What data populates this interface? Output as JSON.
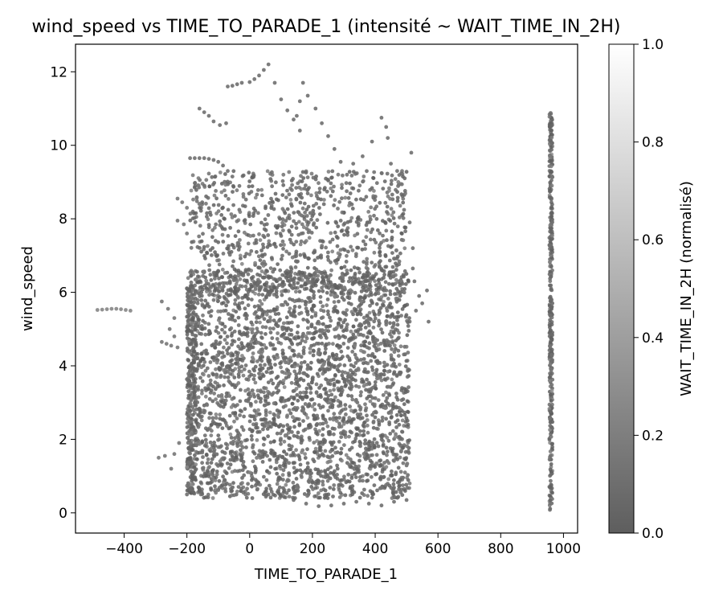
{
  "chart_data": {
    "type": "scatter",
    "title": "wind_speed vs TIME_TO_PARADE_1 (intensité ~ WAIT_TIME_IN_2H)",
    "xlabel": "TIME_TO_PARADE_1",
    "ylabel": "wind_speed",
    "xlim": [
      -555,
      1045
    ],
    "ylim": [
      -0.55,
      12.75
    ],
    "xticks": [
      -400,
      -200,
      0,
      200,
      400,
      600,
      800,
      1000
    ],
    "yticks": [
      0,
      2,
      4,
      6,
      8,
      10,
      12
    ],
    "xtick_labels": [
      "−400",
      "−200",
      "0",
      "200",
      "400",
      "600",
      "800",
      "1000"
    ],
    "ytick_labels": [
      "0",
      "2",
      "4",
      "6",
      "8",
      "10",
      "12"
    ],
    "grid": false,
    "colorbar": {
      "label": "WAIT_TIME_IN_2H (normalisé)",
      "range": [
        0.0,
        1.0
      ],
      "ticks": [
        0.0,
        0.2,
        0.4,
        0.6,
        0.8,
        1.0
      ],
      "tick_labels": [
        "0.0",
        "0.2",
        "0.4",
        "0.6",
        "0.8",
        "1.0"
      ],
      "colormap": "gray",
      "color_low": "#5e5e5e",
      "color_high": "#ffffff"
    },
    "series": [
      {
        "points": [
          [
            -485,
            5.52,
            0.2
          ],
          [
            -470,
            5.53,
            0.2
          ],
          [
            -455,
            5.54,
            0.2
          ],
          [
            -440,
            5.55,
            0.2
          ],
          [
            -425,
            5.55,
            0.2
          ],
          [
            -410,
            5.54,
            0.2
          ],
          [
            -395,
            5.52,
            0.2
          ],
          [
            -380,
            5.5,
            0.2
          ],
          [
            -290,
            1.5,
            0.1
          ],
          [
            -270,
            1.55,
            0.1
          ],
          [
            -250,
            1.2,
            0.1
          ],
          [
            -240,
            1.6,
            0.1
          ],
          [
            -225,
            1.9,
            0.1
          ],
          [
            -280,
            5.75,
            0.1
          ],
          [
            -260,
            5.55,
            0.1
          ],
          [
            -240,
            5.3,
            0.1
          ],
          [
            -280,
            4.65,
            0.1
          ],
          [
            -265,
            4.6,
            0.1
          ],
          [
            -250,
            4.55,
            0.1
          ],
          [
            -230,
            4.5,
            0.1
          ],
          [
            -255,
            5.0,
            0.1
          ],
          [
            -240,
            4.8,
            0.1
          ],
          [
            -230,
            8.55,
            0.1
          ],
          [
            -215,
            8.45,
            0.1
          ],
          [
            -200,
            8.3,
            0.1
          ],
          [
            -230,
            7.95,
            0.1
          ],
          [
            -210,
            7.85,
            0.1
          ],
          [
            -200,
            7.6,
            0.1
          ],
          [
            -190,
            9.65,
            0.05
          ],
          [
            -175,
            9.65,
            0.05
          ],
          [
            -160,
            9.65,
            0.05
          ],
          [
            -145,
            9.65,
            0.05
          ],
          [
            -130,
            9.63,
            0.05
          ],
          [
            -115,
            9.6,
            0.05
          ],
          [
            -100,
            9.55,
            0.05
          ],
          [
            -85,
            9.45,
            0.05
          ],
          [
            -70,
            9.3,
            0.05
          ],
          [
            -55,
            9.15,
            0.05
          ],
          [
            -160,
            11.0,
            0.05
          ],
          [
            -145,
            10.9,
            0.05
          ],
          [
            -130,
            10.8,
            0.05
          ],
          [
            -115,
            10.65,
            0.05
          ],
          [
            -95,
            10.55,
            0.05
          ],
          [
            -75,
            10.6,
            0.05
          ],
          [
            -70,
            11.6,
            0.05
          ],
          [
            -55,
            11.62,
            0.05
          ],
          [
            -40,
            11.66,
            0.05
          ],
          [
            -25,
            11.7,
            0.05
          ],
          [
            0,
            11.72,
            0.05
          ],
          [
            15,
            11.8,
            0.05
          ],
          [
            30,
            11.9,
            0.05
          ],
          [
            45,
            12.05,
            0.05
          ],
          [
            60,
            12.2,
            0.05
          ],
          [
            80,
            11.7,
            0.05
          ],
          [
            100,
            11.25,
            0.05
          ],
          [
            120,
            10.95,
            0.05
          ],
          [
            140,
            10.7,
            0.05
          ],
          [
            160,
            10.4,
            0.05
          ],
          [
            170,
            11.7,
            0.05
          ],
          [
            160,
            11.2,
            0.05
          ],
          [
            150,
            10.8,
            0.05
          ],
          [
            185,
            11.35,
            0.05
          ],
          [
            210,
            11.0,
            0.05
          ],
          [
            230,
            10.6,
            0.05
          ],
          [
            250,
            10.25,
            0.05
          ],
          [
            270,
            9.9,
            0.05
          ],
          [
            290,
            9.55,
            0.05
          ],
          [
            310,
            9.2,
            0.05
          ],
          [
            -200,
            0.5,
            0.05
          ],
          [
            -180,
            0.55,
            0.05
          ],
          [
            -160,
            0.58,
            0.05
          ],
          [
            -100,
            0.62,
            0.05
          ],
          [
            -60,
            0.65,
            0.05
          ],
          [
            -20,
            0.55,
            0.05
          ],
          [
            60,
            0.5,
            0.05
          ],
          [
            100,
            0.45,
            0.05
          ],
          [
            140,
            0.35,
            0.05
          ],
          [
            180,
            0.25,
            0.05
          ],
          [
            220,
            0.18,
            0.05
          ],
          [
            260,
            0.2,
            0.05
          ],
          [
            300,
            0.25,
            0.05
          ],
          [
            340,
            0.3,
            0.05
          ],
          [
            380,
            0.25,
            0.05
          ],
          [
            420,
            0.2,
            0.05
          ],
          [
            460,
            0.3,
            0.05
          ],
          [
            500,
            0.35,
            0.05
          ],
          [
            520,
            6.65,
            0.05
          ],
          [
            525,
            6.3,
            0.05
          ],
          [
            540,
            5.9,
            0.05
          ],
          [
            550,
            5.7,
            0.05
          ],
          [
            565,
            6.05,
            0.05
          ],
          [
            570,
            5.2,
            0.05
          ],
          [
            530,
            5.5,
            0.05
          ],
          [
            520,
            7.2,
            0.05
          ],
          [
            510,
            7.9,
            0.05
          ],
          [
            515,
            9.8,
            0.05
          ],
          [
            420,
            10.75,
            0.05
          ],
          [
            435,
            10.5,
            0.05
          ],
          [
            440,
            10.2,
            0.05
          ],
          [
            390,
            10.1,
            0.05
          ],
          [
            360,
            9.7,
            0.05
          ],
          [
            330,
            9.5,
            0.05
          ],
          [
            450,
            9.5,
            0.05
          ],
          [
            470,
            9.3,
            0.05
          ]
        ],
        "clusters": [
          {
            "x_range": [
              -200,
              510
            ],
            "y_range": [
              0.4,
              6.6
            ],
            "count": 3000,
            "value_range": [
              0.0,
              0.25
            ]
          },
          {
            "x_range": [
              -190,
              500
            ],
            "y_range": [
              6.0,
              9.3
            ],
            "count": 900,
            "value_range": [
              0.0,
              0.25
            ]
          },
          {
            "x_range": [
              -200,
              -170
            ],
            "y_range": [
              0.5,
              6.2
            ],
            "count": 260,
            "value_range": [
              0.0,
              0.3
            ]
          },
          {
            "x_range": [
              955,
              965
            ],
            "y_range": [
              0.05,
              10.9
            ],
            "count": 360,
            "value_range": [
              0.0,
              0.35
            ]
          }
        ]
      }
    ]
  }
}
